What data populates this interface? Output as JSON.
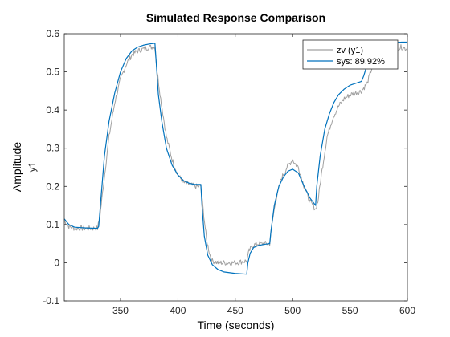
{
  "chart_data": {
    "type": "line",
    "title": "Simulated Response Comparison",
    "xlabel": "Time (seconds)",
    "ylabel": "Amplitude",
    "ysublabel": "y1",
    "xlim": [
      301,
      600
    ],
    "ylim": [
      -0.1,
      0.6
    ],
    "xticks": [
      350,
      400,
      450,
      500,
      550,
      600
    ],
    "yticks": [
      -0.1,
      0,
      0.1,
      0.2,
      0.3,
      0.4,
      0.5,
      0.6
    ],
    "grid": false,
    "legend_position": "top-right",
    "series": [
      {
        "name": "zv (y1)",
        "color": "#a0a0a0",
        "x": [
          301,
          305,
          310,
          320,
          330,
          332,
          335,
          340,
          345,
          350,
          355,
          360,
          365,
          370,
          375,
          380,
          382,
          385,
          390,
          395,
          400,
          405,
          410,
          415,
          420,
          422,
          425,
          428,
          430,
          435,
          440,
          450,
          460,
          462,
          465,
          470,
          475,
          480,
          482,
          485,
          490,
          495,
          500,
          502,
          505,
          510,
          515,
          520,
          522,
          525,
          530,
          535,
          540,
          545,
          550,
          555,
          560,
          565,
          570,
          575,
          580,
          585,
          590,
          595,
          600
        ],
        "y": [
          0.11,
          0.095,
          0.09,
          0.09,
          0.09,
          0.12,
          0.2,
          0.33,
          0.42,
          0.48,
          0.52,
          0.545,
          0.555,
          0.56,
          0.565,
          0.565,
          0.5,
          0.43,
          0.33,
          0.27,
          0.23,
          0.21,
          0.205,
          0.2,
          0.2,
          0.14,
          0.06,
          0.02,
          0.005,
          0.0,
          0.0,
          0.0,
          0.005,
          0.03,
          0.045,
          0.05,
          0.05,
          0.05,
          0.1,
          0.16,
          0.22,
          0.25,
          0.27,
          0.26,
          0.25,
          0.2,
          0.16,
          0.14,
          0.16,
          0.23,
          0.33,
          0.38,
          0.41,
          0.43,
          0.44,
          0.445,
          0.45,
          0.47,
          0.52,
          0.54,
          0.55,
          0.56,
          0.56,
          0.565,
          0.56
        ]
      },
      {
        "name": "sys: 89.92%",
        "color": "#0072bd",
        "x": [
          301,
          305,
          310,
          320,
          330,
          331,
          333,
          336,
          340,
          345,
          350,
          355,
          360,
          365,
          370,
          375,
          380,
          381,
          383,
          386,
          390,
          395,
          400,
          405,
          410,
          415,
          420,
          421,
          423,
          426,
          430,
          435,
          440,
          450,
          460,
          461,
          463,
          466,
          470,
          475,
          480,
          481,
          484,
          488,
          492,
          496,
          500,
          505,
          510,
          515,
          520,
          521,
          524,
          528,
          532,
          536,
          540,
          545,
          550,
          555,
          560,
          562,
          565,
          570,
          575,
          580,
          581,
          585,
          590,
          595,
          600
        ],
        "y": [
          0.115,
          0.1,
          0.093,
          0.091,
          0.09,
          0.095,
          0.17,
          0.28,
          0.37,
          0.445,
          0.5,
          0.535,
          0.555,
          0.565,
          0.57,
          0.573,
          0.575,
          0.53,
          0.44,
          0.37,
          0.3,
          0.255,
          0.23,
          0.215,
          0.208,
          0.205,
          0.205,
          0.15,
          0.07,
          0.02,
          -0.005,
          -0.018,
          -0.024,
          -0.028,
          -0.03,
          0.0,
          0.025,
          0.04,
          0.045,
          0.048,
          0.05,
          0.08,
          0.15,
          0.2,
          0.225,
          0.24,
          0.245,
          0.235,
          0.2,
          0.17,
          0.15,
          0.2,
          0.28,
          0.35,
          0.39,
          0.42,
          0.44,
          0.455,
          0.465,
          0.47,
          0.475,
          0.49,
          0.52,
          0.55,
          0.565,
          0.57,
          0.575,
          0.576,
          0.577,
          0.578,
          0.578
        ]
      }
    ]
  }
}
